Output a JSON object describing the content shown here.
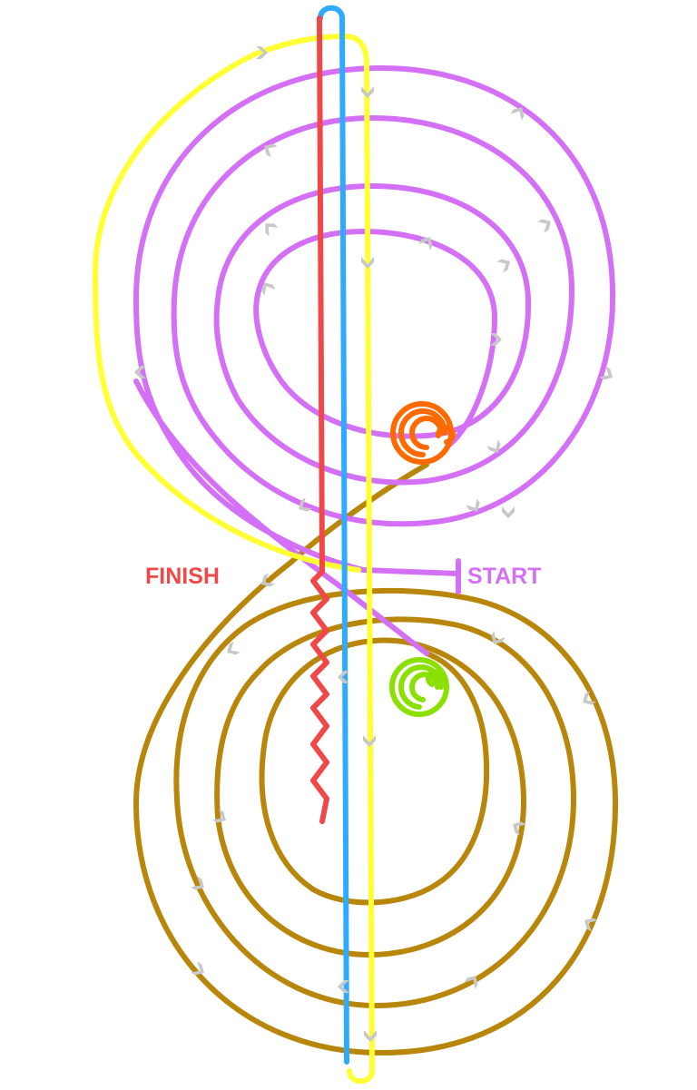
{
  "labels": {
    "finish": "FINISH",
    "start": "START"
  },
  "colors": {
    "purple": "#d470f5",
    "yellow": "#ffff33",
    "blue": "#2eaaff",
    "red": "#f04848",
    "brown": "#b8860b",
    "orange": "#ff6a00",
    "green": "#8ae000",
    "arrow": "#c8c8c8",
    "finish_label": "#f04848",
    "start_label": "#d470f5"
  }
}
